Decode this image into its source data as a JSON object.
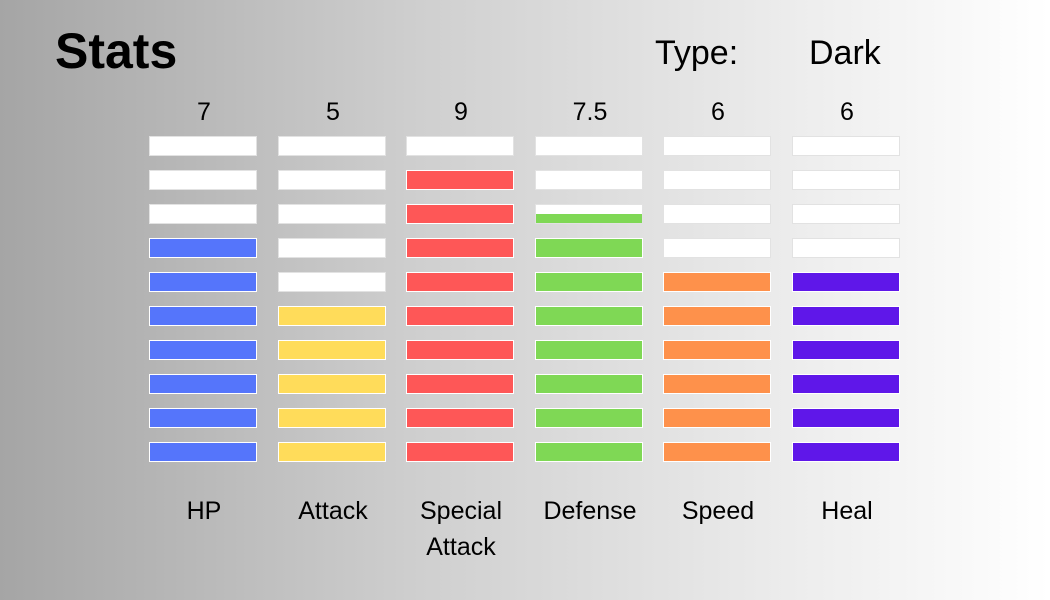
{
  "header": {
    "title": "Stats",
    "type_label": "Type:",
    "type_value": "Dark"
  },
  "max_level": 10,
  "stats": [
    {
      "name": "HP",
      "value_label": "7",
      "value": 7,
      "color": "#5575fb"
    },
    {
      "name": "Attack",
      "value_label": "5",
      "value": 5,
      "color": "#ffdc5a"
    },
    {
      "name": "Special\nAttack",
      "value_label": "9",
      "value": 9,
      "color": "#fe5757"
    },
    {
      "name": "Defense",
      "value_label": "7.5",
      "value": 7.5,
      "color": "#7fd855"
    },
    {
      "name": "Speed",
      "value_label": "6",
      "value": 6,
      "color": "#fe914b"
    },
    {
      "name": "Heal",
      "value_label": "6",
      "value": 6,
      "color": "#5f17e9"
    }
  ]
}
